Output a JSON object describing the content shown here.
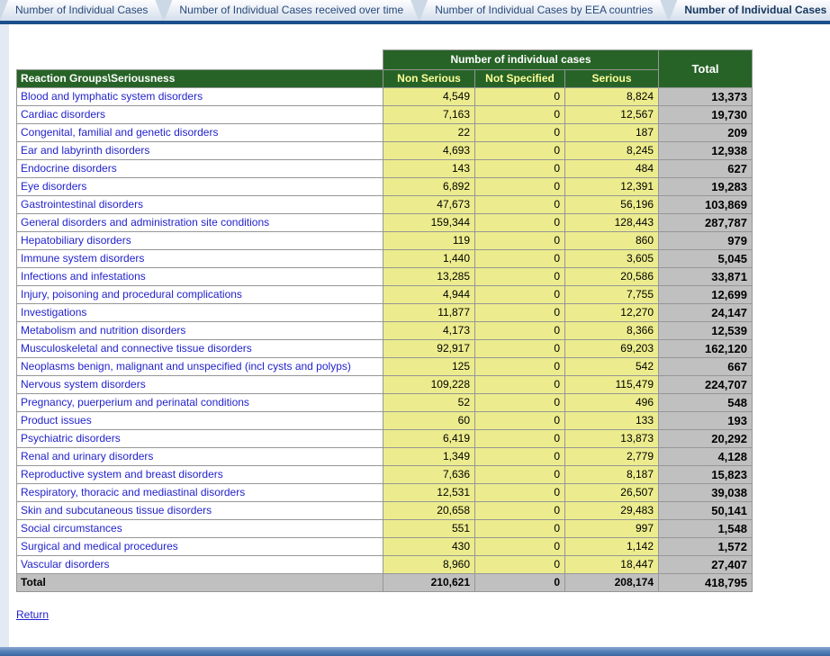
{
  "tabs": [
    {
      "label": "Number of Individual Cases",
      "active": false
    },
    {
      "label": "Number of Individual Cases received over time",
      "active": false
    },
    {
      "label": "Number of Individual Cases by EEA countries",
      "active": false
    },
    {
      "label": "Number of Individual Cases I",
      "active": true
    }
  ],
  "table": {
    "group_header": "Number of individual cases",
    "total_header": "Total",
    "row_header": "Reaction Groups\\Seriousness",
    "columns": [
      "Non Serious",
      "Not Specified",
      "Serious"
    ],
    "rows": [
      {
        "label": "Blood and lymphatic system disorders",
        "non_serious": "4,549",
        "not_specified": "0",
        "serious": "8,824",
        "total": "13,373"
      },
      {
        "label": "Cardiac disorders",
        "non_serious": "7,163",
        "not_specified": "0",
        "serious": "12,567",
        "total": "19,730"
      },
      {
        "label": "Congenital, familial and genetic disorders",
        "non_serious": "22",
        "not_specified": "0",
        "serious": "187",
        "total": "209"
      },
      {
        "label": "Ear and labyrinth disorders",
        "non_serious": "4,693",
        "not_specified": "0",
        "serious": "8,245",
        "total": "12,938"
      },
      {
        "label": "Endocrine disorders",
        "non_serious": "143",
        "not_specified": "0",
        "serious": "484",
        "total": "627"
      },
      {
        "label": "Eye disorders",
        "non_serious": "6,892",
        "not_specified": "0",
        "serious": "12,391",
        "total": "19,283"
      },
      {
        "label": "Gastrointestinal disorders",
        "non_serious": "47,673",
        "not_specified": "0",
        "serious": "56,196",
        "total": "103,869"
      },
      {
        "label": "General disorders and administration site conditions",
        "non_serious": "159,344",
        "not_specified": "0",
        "serious": "128,443",
        "total": "287,787"
      },
      {
        "label": "Hepatobiliary disorders",
        "non_serious": "119",
        "not_specified": "0",
        "serious": "860",
        "total": "979"
      },
      {
        "label": "Immune system disorders",
        "non_serious": "1,440",
        "not_specified": "0",
        "serious": "3,605",
        "total": "5,045"
      },
      {
        "label": "Infections and infestations",
        "non_serious": "13,285",
        "not_specified": "0",
        "serious": "20,586",
        "total": "33,871"
      },
      {
        "label": "Injury, poisoning and procedural complications",
        "non_serious": "4,944",
        "not_specified": "0",
        "serious": "7,755",
        "total": "12,699"
      },
      {
        "label": "Investigations",
        "non_serious": "11,877",
        "not_specified": "0",
        "serious": "12,270",
        "total": "24,147"
      },
      {
        "label": "Metabolism and nutrition disorders",
        "non_serious": "4,173",
        "not_specified": "0",
        "serious": "8,366",
        "total": "12,539"
      },
      {
        "label": "Musculoskeletal and connective tissue disorders",
        "non_serious": "92,917",
        "not_specified": "0",
        "serious": "69,203",
        "total": "162,120"
      },
      {
        "label": "Neoplasms benign, malignant and unspecified (incl cysts and polyps)",
        "non_serious": "125",
        "not_specified": "0",
        "serious": "542",
        "total": "667"
      },
      {
        "label": "Nervous system disorders",
        "non_serious": "109,228",
        "not_specified": "0",
        "serious": "115,479",
        "total": "224,707"
      },
      {
        "label": "Pregnancy, puerperium and perinatal conditions",
        "non_serious": "52",
        "not_specified": "0",
        "serious": "496",
        "total": "548"
      },
      {
        "label": "Product issues",
        "non_serious": "60",
        "not_specified": "0",
        "serious": "133",
        "total": "193"
      },
      {
        "label": "Psychiatric disorders",
        "non_serious": "6,419",
        "not_specified": "0",
        "serious": "13,873",
        "total": "20,292"
      },
      {
        "label": "Renal and urinary disorders",
        "non_serious": "1,349",
        "not_specified": "0",
        "serious": "2,779",
        "total": "4,128"
      },
      {
        "label": "Reproductive system and breast disorders",
        "non_serious": "7,636",
        "not_specified": "0",
        "serious": "8,187",
        "total": "15,823"
      },
      {
        "label": "Respiratory, thoracic and mediastinal disorders",
        "non_serious": "12,531",
        "not_specified": "0",
        "serious": "26,507",
        "total": "39,038"
      },
      {
        "label": "Skin and subcutaneous tissue disorders",
        "non_serious": "20,658",
        "not_specified": "0",
        "serious": "29,483",
        "total": "50,141"
      },
      {
        "label": "Social circumstances",
        "non_serious": "551",
        "not_specified": "0",
        "serious": "997",
        "total": "1,548"
      },
      {
        "label": "Surgical and medical procedures",
        "non_serious": "430",
        "not_specified": "0",
        "serious": "1,142",
        "total": "1,572"
      },
      {
        "label": "Vascular disorders",
        "non_serious": "8,960",
        "not_specified": "0",
        "serious": "18,447",
        "total": "27,407"
      }
    ],
    "total_row": {
      "label": "Total",
      "non_serious": "210,621",
      "not_specified": "0",
      "serious": "208,174",
      "total": "418,795"
    }
  },
  "footer": {
    "return_label": "Return"
  },
  "colors": {
    "header_green": "#276327",
    "header_text": "#FFFFFF",
    "subheader_text": "#FFFF99",
    "cell_yellow": "#ECEC8E",
    "total_gray": "#C0C0C0",
    "link_blue": "#2222CC",
    "tab_text": "#27497B",
    "navy_bar": "#1A4F8B"
  }
}
